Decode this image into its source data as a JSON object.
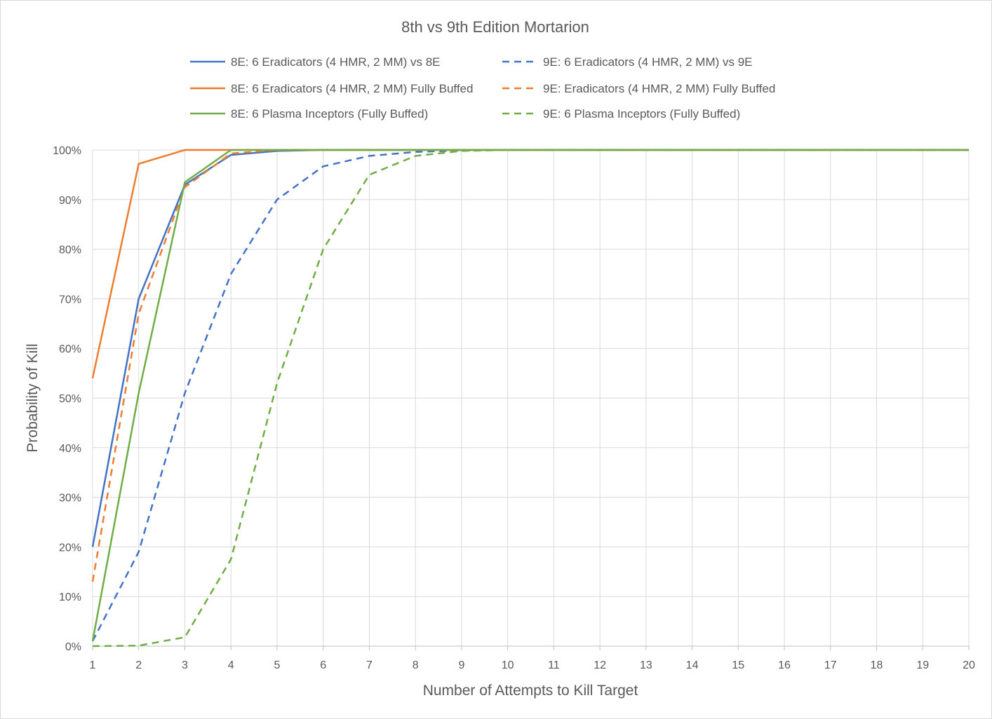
{
  "chart_data": {
    "type": "line",
    "title": "8th vs 9th Edition Mortarion",
    "xlabel": "Number of Attempts to Kill Target",
    "ylabel": "Probability of Kill",
    "x": [
      1,
      2,
      3,
      4,
      5,
      6,
      7,
      8,
      9,
      10,
      11,
      12,
      13,
      14,
      15,
      16,
      17,
      18,
      19,
      20
    ],
    "x_tick_labels": [
      "1",
      "2",
      "3",
      "4",
      "5",
      "6",
      "7",
      "8",
      "9",
      "10",
      "11",
      "12",
      "13",
      "14",
      "15",
      "16",
      "17",
      "18",
      "19",
      "20"
    ],
    "y_tick_labels": [
      "0%",
      "10%",
      "20%",
      "30%",
      "40%",
      "50%",
      "60%",
      "70%",
      "80%",
      "90%",
      "100%"
    ],
    "ylim": [
      0,
      1
    ],
    "grid": true,
    "legend_position": "top",
    "series": [
      {
        "name": "8E: 6 Eradicators (4 HMR, 2 MM) vs 8E",
        "color": "#4472C4",
        "dash": "solid",
        "values": [
          0.2,
          0.7,
          0.93,
          0.99,
          0.998,
          1,
          1,
          1,
          1,
          1,
          1,
          1,
          1,
          1,
          1,
          1,
          1,
          1,
          1,
          1
        ]
      },
      {
        "name": "9E: 6 Eradicators (4 HMR, 2 MM) vs 9E",
        "color": "#4472C4",
        "dash": "dashed",
        "values": [
          0.01,
          0.19,
          0.51,
          0.75,
          0.9,
          0.967,
          0.988,
          0.996,
          0.999,
          1,
          1,
          1,
          1,
          1,
          1,
          1,
          1,
          1,
          1,
          1
        ]
      },
      {
        "name": "8E: 6 Eradicators (4 HMR, 2 MM) Fully Buffed",
        "color": "#ED7D31",
        "dash": "solid",
        "values": [
          0.54,
          0.972,
          1,
          1,
          1,
          1,
          1,
          1,
          1,
          1,
          1,
          1,
          1,
          1,
          1,
          1,
          1,
          1,
          1,
          1
        ]
      },
      {
        "name": "9E: Eradicators (4 HMR, 2 MM) Fully Buffed",
        "color": "#ED7D31",
        "dash": "dashed",
        "values": [
          0.13,
          0.67,
          0.925,
          0.993,
          1,
          1,
          1,
          1,
          1,
          1,
          1,
          1,
          1,
          1,
          1,
          1,
          1,
          1,
          1,
          1
        ]
      },
      {
        "name": "8E: 6 Plasma Inceptors (Fully Buffed)",
        "color": "#70AD47",
        "dash": "solid",
        "values": [
          0.01,
          0.51,
          0.935,
          1,
          1,
          1,
          1,
          1,
          1,
          1,
          1,
          1,
          1,
          1,
          1,
          1,
          1,
          1,
          1,
          1
        ]
      },
      {
        "name": "9E: 6 Plasma Inceptors (Fully Buffed)",
        "color": "#70AD47",
        "dash": "dashed",
        "values": [
          0,
          0.001,
          0.018,
          0.175,
          0.53,
          0.8,
          0.95,
          0.988,
          0.998,
          1,
          1,
          1,
          1,
          1,
          1,
          1,
          1,
          1,
          1,
          1
        ]
      }
    ]
  }
}
